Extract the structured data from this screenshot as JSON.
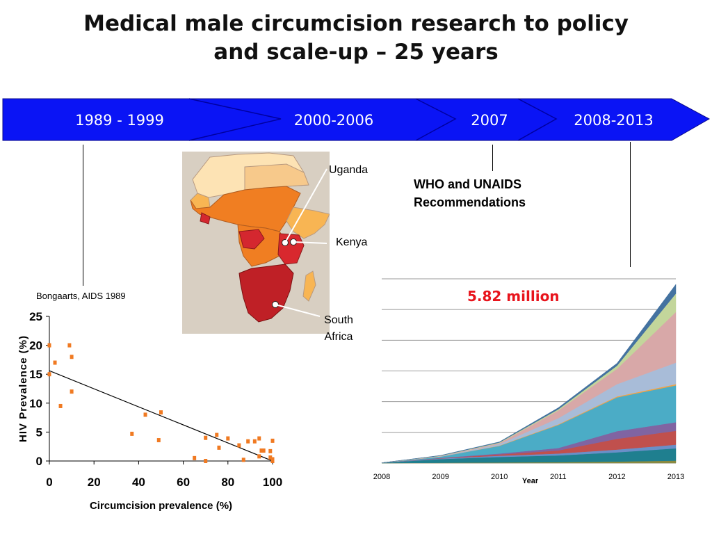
{
  "title_line1": "Medical male circumcision research to policy",
  "title_line2": "and scale-up – 25 years",
  "timeline": {
    "labels": [
      "1989 - 1999",
      "2000-2006",
      "2007",
      "2008-2013"
    ],
    "color": "#0a14f5"
  },
  "annotations": {
    "bongaarts": "Bongaarts, AIDS 1989",
    "who_line1": "WHO and UNAIDS",
    "who_line2": "Recommendations",
    "million": "5.82 million"
  },
  "map_labels": {
    "uganda": "Uganda",
    "kenya": "Kenya",
    "south_africa_line1": "South",
    "south_africa_line2": "Africa"
  },
  "chart_data": [
    {
      "type": "scatter",
      "xlabel": "Circumcision prevalence (%)",
      "ylabel": "HIV Prevalence (%)",
      "xlim": [
        0,
        100
      ],
      "ylim": [
        0,
        25
      ],
      "xticks": [
        0,
        20,
        40,
        60,
        80,
        100
      ],
      "yticks": [
        0,
        5,
        10,
        15,
        20,
        25
      ],
      "points": [
        [
          0,
          20
        ],
        [
          0,
          15
        ],
        [
          2.5,
          17
        ],
        [
          5,
          9.5
        ],
        [
          9,
          20
        ],
        [
          10,
          18
        ],
        [
          10,
          12
        ],
        [
          37,
          4.7
        ],
        [
          43,
          8
        ],
        [
          49,
          3.6
        ],
        [
          50,
          8.4
        ],
        [
          65,
          0.5
        ],
        [
          70,
          4
        ],
        [
          70,
          0
        ],
        [
          75,
          4.5
        ],
        [
          76,
          2.3
        ],
        [
          80,
          3.9
        ],
        [
          85,
          2.7
        ],
        [
          87,
          0.2
        ],
        [
          89,
          3.4
        ],
        [
          92,
          3.4
        ],
        [
          94,
          3.9
        ],
        [
          94,
          0.8
        ],
        [
          95,
          1.8
        ],
        [
          96,
          1.8
        ],
        [
          99,
          1.7
        ],
        [
          100,
          0.3
        ],
        [
          100,
          3.5
        ],
        [
          100,
          0
        ],
        [
          99,
          0.6
        ]
      ],
      "trendline": [
        [
          0,
          15.6
        ],
        [
          100,
          0
        ]
      ],
      "marker_color": "#f07a22"
    },
    {
      "type": "area",
      "x": [
        2008,
        2009,
        2010,
        2011,
        2012,
        2013
      ],
      "xlabel": "Year",
      "annotation": "5.82 million",
      "stacked": true,
      "series": [
        {
          "color": "#8a8a40",
          "values": [
            0,
            0.01,
            0.02,
            0.03,
            0.05,
            0.08
          ]
        },
        {
          "color": "#1f7f8f",
          "values": [
            0.01,
            0.12,
            0.18,
            0.22,
            0.3,
            0.4
          ]
        },
        {
          "color": "#6a8fc8",
          "values": [
            0,
            0.02,
            0.04,
            0.06,
            0.09,
            0.12
          ]
        },
        {
          "color": "#c0504d",
          "values": [
            0,
            0.01,
            0.04,
            0.1,
            0.35,
            0.45
          ]
        },
        {
          "color": "#8064a2",
          "values": [
            0,
            0.01,
            0.03,
            0.08,
            0.25,
            0.28
          ]
        },
        {
          "color": "#4bacc6",
          "values": [
            0,
            0.04,
            0.25,
            0.75,
            1.1,
            1.2
          ]
        },
        {
          "color": "#f2a345",
          "values": [
            0,
            0,
            0.01,
            0.02,
            0.03,
            0.04
          ]
        },
        {
          "color": "#a8bcd8",
          "values": [
            0,
            0.01,
            0.05,
            0.2,
            0.4,
            0.7
          ]
        },
        {
          "color": "#d8a8a8",
          "values": [
            0,
            0.01,
            0.03,
            0.25,
            0.5,
            1.65
          ]
        },
        {
          "color": "#c3d69b",
          "values": [
            0,
            0.01,
            0.02,
            0.04,
            0.1,
            0.6
          ]
        },
        {
          "color": "#4472a0",
          "values": [
            0,
            0.01,
            0.02,
            0.05,
            0.08,
            0.3
          ]
        }
      ],
      "total_2013": 5.82
    }
  ]
}
